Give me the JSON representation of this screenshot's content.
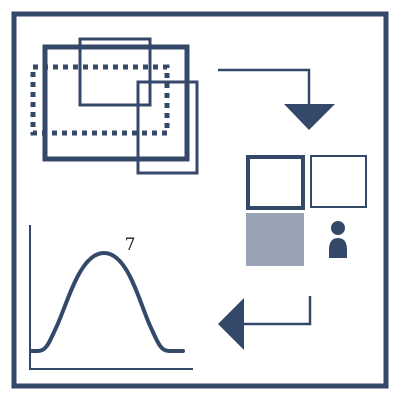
{
  "colors": {
    "primary": "#34496a",
    "muted": "#9aa3b5",
    "background": "#ffffff"
  },
  "curve": {
    "peak_label": "7"
  },
  "icons": {
    "person": "person-icon",
    "arrow_down": "arrow-down-icon",
    "arrow_left": "arrow-left-icon"
  }
}
